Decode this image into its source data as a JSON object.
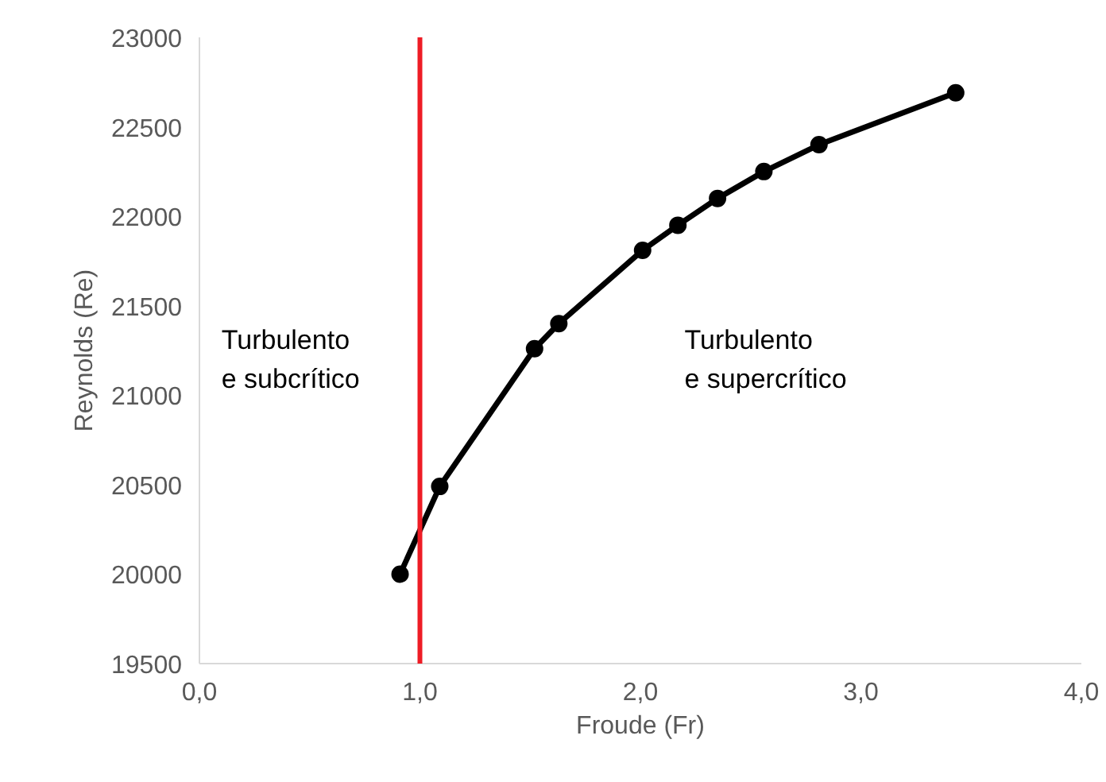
{
  "chart_data": {
    "type": "line",
    "xlabel": "Froude (Fr)",
    "ylabel": "Reynolds (Re)",
    "x": [
      0.91,
      1.09,
      1.52,
      1.63,
      2.01,
      2.17,
      2.35,
      2.56,
      2.81,
      3.43
    ],
    "series": [
      {
        "color": "#000000",
        "values": [
          20000,
          20490,
          21260,
          21400,
          21810,
          21950,
          22100,
          22250,
          22400,
          22690
        ]
      }
    ],
    "marker": "circle",
    "line_style": "solid",
    "grid": false,
    "xlim": [
      0,
      4
    ],
    "ylim": [
      19500,
      23000
    ],
    "xticks": [
      {
        "value": 0,
        "label": "0,0"
      },
      {
        "value": 1,
        "label": "1,0"
      },
      {
        "value": 2,
        "label": "2,0"
      },
      {
        "value": 3,
        "label": "3,0"
      },
      {
        "value": 4,
        "label": "4,0"
      }
    ],
    "yticks": [
      19500,
      20000,
      20500,
      21000,
      21500,
      22000,
      22500,
      23000
    ],
    "ref_lines": [
      {
        "axis": "x",
        "value": 1,
        "color": "#ee1c25"
      }
    ],
    "annotations": [
      "Turbulento\ne subcrítico",
      "Turbulento\ne supercrítico"
    ]
  }
}
